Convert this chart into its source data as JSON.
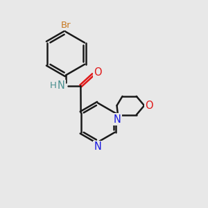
{
  "background_color": "#e8e8e8",
  "bond_color": "#1a1a1a",
  "bond_width": 1.8,
  "dbo": 0.07,
  "atom_colors": {
    "Br": "#c87820",
    "N_amine": "#4a9090",
    "N": "#1818e0",
    "O": "#e01818",
    "C": "#1a1a1a"
  },
  "font_size": 9.5,
  "figsize": [
    3.0,
    3.0
  ],
  "dpi": 100
}
